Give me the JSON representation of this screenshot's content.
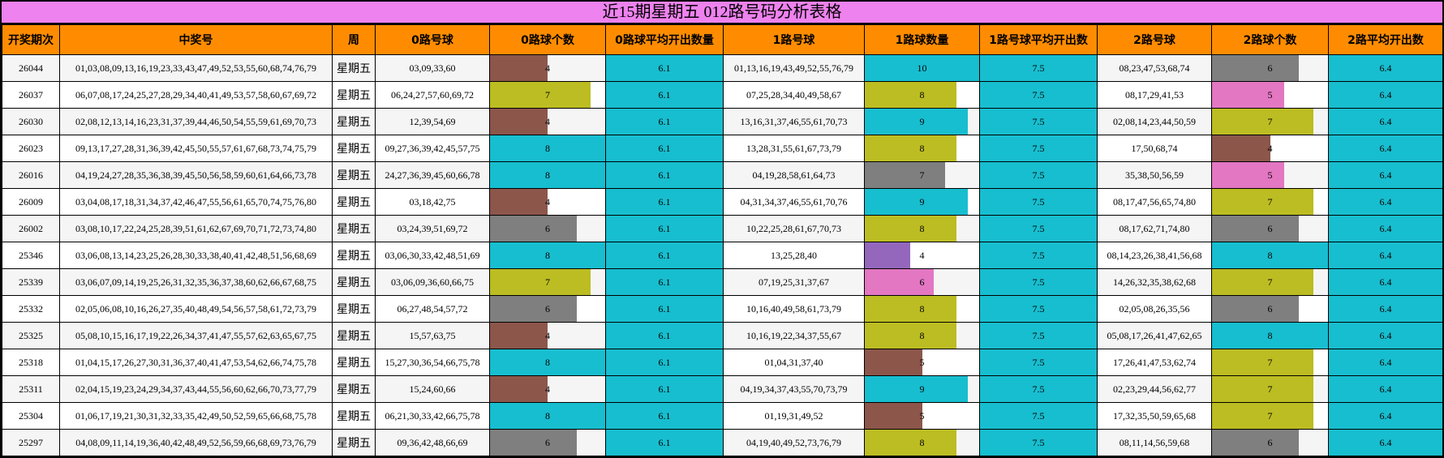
{
  "title": "近15期星期五 012路号码分析表格",
  "headers": [
    "开奖期次",
    "中奖号",
    "周",
    "0路号球",
    "0路球个数",
    "0路球平均开出数量",
    "1路号球",
    "1路球数量",
    "1路号球平均开出数",
    "2路号球",
    "2路球个数",
    "2路平均开出数"
  ],
  "bar_max": {
    "zero": 8,
    "one": 10,
    "two": 8
  },
  "colors": {
    "cyan": "#17becf",
    "olive": "#bcbd22",
    "gray": "#7f7f7f",
    "brown": "#8c564b",
    "pink": "#e377c2",
    "purple": "#9467bd",
    "title_bg": "#ee82ee",
    "header_bg": "#ff8c00"
  },
  "rows": [
    {
      "issue": "26044",
      "numbers": "01,03,08,09,13,16,19,23,33,43,47,49,52,53,55,60,68,74,76,79",
      "week": "星期五",
      "zero_balls": "03,09,33,60",
      "zero_count": 4,
      "zero_color": "brown",
      "zero_avg": "6.1",
      "one_balls": "01,13,16,19,43,49,52,55,76,79",
      "one_count": 10,
      "one_color": "cyan",
      "one_avg": "7.5",
      "two_balls": "08,23,47,53,68,74",
      "two_count": 6,
      "two_color": "gray",
      "two_avg": "6.4"
    },
    {
      "issue": "26037",
      "numbers": "06,07,08,17,24,25,27,28,29,34,40,41,49,53,57,58,60,67,69,72",
      "week": "星期五",
      "zero_balls": "06,24,27,57,60,69,72",
      "zero_count": 7,
      "zero_color": "olive",
      "zero_avg": "6.1",
      "one_balls": "07,25,28,34,40,49,58,67",
      "one_count": 8,
      "one_color": "olive",
      "one_avg": "7.5",
      "two_balls": "08,17,29,41,53",
      "two_count": 5,
      "two_color": "pink",
      "two_avg": "6.4"
    },
    {
      "issue": "26030",
      "numbers": "02,08,12,13,14,16,23,31,37,39,44,46,50,54,55,59,61,69,70,73",
      "week": "星期五",
      "zero_balls": "12,39,54,69",
      "zero_count": 4,
      "zero_color": "brown",
      "zero_avg": "6.1",
      "one_balls": "13,16,31,37,46,55,61,70,73",
      "one_count": 9,
      "one_color": "cyan",
      "one_avg": "7.5",
      "two_balls": "02,08,14,23,44,50,59",
      "two_count": 7,
      "two_color": "olive",
      "two_avg": "6.4"
    },
    {
      "issue": "26023",
      "numbers": "09,13,17,27,28,31,36,39,42,45,50,55,57,61,67,68,73,74,75,79",
      "week": "星期五",
      "zero_balls": "09,27,36,39,42,45,57,75",
      "zero_count": 8,
      "zero_color": "cyan",
      "zero_avg": "6.1",
      "one_balls": "13,28,31,55,61,67,73,79",
      "one_count": 8,
      "one_color": "olive",
      "one_avg": "7.5",
      "two_balls": "17,50,68,74",
      "two_count": 4,
      "two_color": "brown",
      "two_avg": "6.4"
    },
    {
      "issue": "26016",
      "numbers": "04,19,24,27,28,35,36,38,39,45,50,56,58,59,60,61,64,66,73,78",
      "week": "星期五",
      "zero_balls": "24,27,36,39,45,60,66,78",
      "zero_count": 8,
      "zero_color": "cyan",
      "zero_avg": "6.1",
      "one_balls": "04,19,28,58,61,64,73",
      "one_count": 7,
      "one_color": "gray",
      "one_avg": "7.5",
      "two_balls": "35,38,50,56,59",
      "two_count": 5,
      "two_color": "pink",
      "two_avg": "6.4"
    },
    {
      "issue": "26009",
      "numbers": "03,04,08,17,18,31,34,37,42,46,47,55,56,61,65,70,74,75,76,80",
      "week": "星期五",
      "zero_balls": "03,18,42,75",
      "zero_count": 4,
      "zero_color": "brown",
      "zero_avg": "6.1",
      "one_balls": "04,31,34,37,46,55,61,70,76",
      "one_count": 9,
      "one_color": "cyan",
      "one_avg": "7.5",
      "two_balls": "08,17,47,56,65,74,80",
      "two_count": 7,
      "two_color": "olive",
      "two_avg": "6.4"
    },
    {
      "issue": "26002",
      "numbers": "03,08,10,17,22,24,25,28,39,51,61,62,67,69,70,71,72,73,74,80",
      "week": "星期五",
      "zero_balls": "03,24,39,51,69,72",
      "zero_count": 6,
      "zero_color": "gray",
      "zero_avg": "6.1",
      "one_balls": "10,22,25,28,61,67,70,73",
      "one_count": 8,
      "one_color": "olive",
      "one_avg": "7.5",
      "two_balls": "08,17,62,71,74,80",
      "two_count": 6,
      "two_color": "gray",
      "two_avg": "6.4"
    },
    {
      "issue": "25346",
      "numbers": "03,06,08,13,14,23,25,26,28,30,33,38,40,41,42,48,51,56,68,69",
      "week": "星期五",
      "zero_balls": "03,06,30,33,42,48,51,69",
      "zero_count": 8,
      "zero_color": "cyan",
      "zero_avg": "6.1",
      "one_balls": "13,25,28,40",
      "one_count": 4,
      "one_color": "purple",
      "one_avg": "7.5",
      "two_balls": "08,14,23,26,38,41,56,68",
      "two_count": 8,
      "two_color": "cyan",
      "two_avg": "6.4"
    },
    {
      "issue": "25339",
      "numbers": "03,06,07,09,14,19,25,26,31,32,35,36,37,38,60,62,66,67,68,75",
      "week": "星期五",
      "zero_balls": "03,06,09,36,60,66,75",
      "zero_count": 7,
      "zero_color": "olive",
      "zero_avg": "6.1",
      "one_balls": "07,19,25,31,37,67",
      "one_count": 6,
      "one_color": "pink",
      "one_avg": "7.5",
      "two_balls": "14,26,32,35,38,62,68",
      "two_count": 7,
      "two_color": "olive",
      "two_avg": "6.4"
    },
    {
      "issue": "25332",
      "numbers": "02,05,06,08,10,16,26,27,35,40,48,49,54,56,57,58,61,72,73,79",
      "week": "星期五",
      "zero_balls": "06,27,48,54,57,72",
      "zero_count": 6,
      "zero_color": "gray",
      "zero_avg": "6.1",
      "one_balls": "10,16,40,49,58,61,73,79",
      "one_count": 8,
      "one_color": "olive",
      "one_avg": "7.5",
      "two_balls": "02,05,08,26,35,56",
      "two_count": 6,
      "two_color": "gray",
      "two_avg": "6.4"
    },
    {
      "issue": "25325",
      "numbers": "05,08,10,15,16,17,19,22,26,34,37,41,47,55,57,62,63,65,67,75",
      "week": "星期五",
      "zero_balls": "15,57,63,75",
      "zero_count": 4,
      "zero_color": "brown",
      "zero_avg": "6.1",
      "one_balls": "10,16,19,22,34,37,55,67",
      "one_count": 8,
      "one_color": "olive",
      "one_avg": "7.5",
      "two_balls": "05,08,17,26,41,47,62,65",
      "two_count": 8,
      "two_color": "cyan",
      "two_avg": "6.4"
    },
    {
      "issue": "25318",
      "numbers": "01,04,15,17,26,27,30,31,36,37,40,41,47,53,54,62,66,74,75,78",
      "week": "星期五",
      "zero_balls": "15,27,30,36,54,66,75,78",
      "zero_count": 8,
      "zero_color": "cyan",
      "zero_avg": "6.1",
      "one_balls": "01,04,31,37,40",
      "one_count": 5,
      "one_color": "brown",
      "one_avg": "7.5",
      "two_balls": "17,26,41,47,53,62,74",
      "two_count": 7,
      "two_color": "olive",
      "two_avg": "6.4"
    },
    {
      "issue": "25311",
      "numbers": "02,04,15,19,23,24,29,34,37,43,44,55,56,60,62,66,70,73,77,79",
      "week": "星期五",
      "zero_balls": "15,24,60,66",
      "zero_count": 4,
      "zero_color": "brown",
      "zero_avg": "6.1",
      "one_balls": "04,19,34,37,43,55,70,73,79",
      "one_count": 9,
      "one_color": "cyan",
      "one_avg": "7.5",
      "two_balls": "02,23,29,44,56,62,77",
      "two_count": 7,
      "two_color": "olive",
      "two_avg": "6.4"
    },
    {
      "issue": "25304",
      "numbers": "01,06,17,19,21,30,31,32,33,35,42,49,50,52,59,65,66,68,75,78",
      "week": "星期五",
      "zero_balls": "06,21,30,33,42,66,75,78",
      "zero_count": 8,
      "zero_color": "cyan",
      "zero_avg": "6.1",
      "one_balls": "01,19,31,49,52",
      "one_count": 5,
      "one_color": "brown",
      "one_avg": "7.5",
      "two_balls": "17,32,35,50,59,65,68",
      "two_count": 7,
      "two_color": "olive",
      "two_avg": "6.4"
    },
    {
      "issue": "25297",
      "numbers": "04,08,09,11,14,19,36,40,42,48,49,52,56,59,66,68,69,73,76,79",
      "week": "星期五",
      "zero_balls": "09,36,42,48,66,69",
      "zero_count": 6,
      "zero_color": "gray",
      "zero_avg": "6.1",
      "one_balls": "04,19,40,49,52,73,76,79",
      "one_count": 8,
      "one_color": "olive",
      "one_avg": "7.5",
      "two_balls": "08,11,14,56,59,68",
      "two_count": 6,
      "two_color": "gray",
      "two_avg": "6.4"
    }
  ]
}
